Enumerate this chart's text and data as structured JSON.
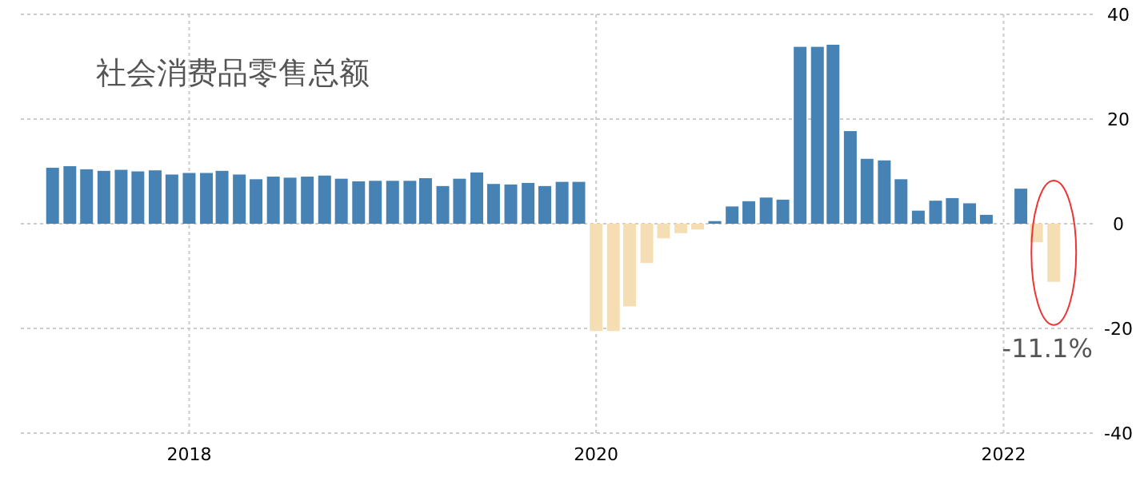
{
  "chart_data": {
    "type": "bar",
    "title": "社会消费品零售总额",
    "x": [
      "2017-05",
      "2017-06",
      "2017-07",
      "2017-08",
      "2017-09",
      "2017-10",
      "2017-11",
      "2017-12",
      "2018-01",
      "2018-02",
      "2018-03",
      "2018-04",
      "2018-05",
      "2018-06",
      "2018-07",
      "2018-08",
      "2018-09",
      "2018-10",
      "2018-11",
      "2018-12",
      "2019-01",
      "2019-02",
      "2019-03",
      "2019-04",
      "2019-05",
      "2019-06",
      "2019-07",
      "2019-08",
      "2019-09",
      "2019-10",
      "2019-11",
      "2019-12",
      "2020-01",
      "2020-02",
      "2020-03",
      "2020-04",
      "2020-05",
      "2020-06",
      "2020-07",
      "2020-08",
      "2020-09",
      "2020-10",
      "2020-11",
      "2020-12",
      "2021-01",
      "2021-02",
      "2021-03",
      "2021-04",
      "2021-05",
      "2021-06",
      "2021-07",
      "2021-08",
      "2021-09",
      "2021-10",
      "2021-11",
      "2021-12",
      "2022-01",
      "2022-02",
      "2022-03",
      "2022-04"
    ],
    "values": [
      10.7,
      11.0,
      10.4,
      10.1,
      10.3,
      10.0,
      10.2,
      9.4,
      9.7,
      9.7,
      10.1,
      9.4,
      8.5,
      9.0,
      8.8,
      9.0,
      9.2,
      8.6,
      8.1,
      8.2,
      8.2,
      8.2,
      8.7,
      7.2,
      8.6,
      9.8,
      7.6,
      7.5,
      7.8,
      7.2,
      8.0,
      8.0,
      -20.5,
      -20.5,
      -15.8,
      -7.5,
      -2.8,
      -1.8,
      -1.1,
      0.5,
      3.3,
      4.3,
      5.0,
      4.6,
      33.8,
      33.8,
      34.2,
      17.7,
      12.4,
      12.1,
      8.5,
      2.5,
      4.4,
      4.9,
      3.9,
      1.7,
      null,
      6.7,
      -3.5,
      -11.1
    ],
    "colors": [
      "#4682b4",
      "#4682b4",
      "#4682b4",
      "#4682b4",
      "#4682b4",
      "#4682b4",
      "#4682b4",
      "#4682b4",
      "#4682b4",
      "#4682b4",
      "#4682b4",
      "#4682b4",
      "#4682b4",
      "#4682b4",
      "#4682b4",
      "#4682b4",
      "#4682b4",
      "#4682b4",
      "#4682b4",
      "#4682b4",
      "#4682b4",
      "#4682b4",
      "#4682b4",
      "#4682b4",
      "#4682b4",
      "#4682b4",
      "#4682b4",
      "#4682b4",
      "#4682b4",
      "#4682b4",
      "#4682b4",
      "#4682b4",
      "#f5deb3",
      "#f5deb3",
      "#f5deb3",
      "#f5deb3",
      "#f5deb3",
      "#f5deb3",
      "#f5deb3",
      "#4682b4",
      "#4682b4",
      "#4682b4",
      "#4682b4",
      "#4682b4",
      "#4682b4",
      "#4682b4",
      "#4682b4",
      "#4682b4",
      "#4682b4",
      "#4682b4",
      "#4682b4",
      "#4682b4",
      "#4682b4",
      "#4682b4",
      "#4682b4",
      "#4682b4",
      null,
      "#4682b4",
      "#f5deb3",
      "#f5deb3"
    ],
    "xlim": [
      "2017-03-05",
      "2022-06-10"
    ],
    "xticks": [
      {
        "value": "2018-01",
        "label": "2018"
      },
      {
        "value": "2020-01",
        "label": "2020"
      },
      {
        "value": "2022-01",
        "label": "2022"
      }
    ],
    "ylim": [
      -40,
      40
    ],
    "yticks": [
      -40,
      -20,
      0,
      20,
      40
    ],
    "grid": true,
    "annotations": [
      {
        "text": "-11.1%",
        "x": "2022-04",
        "y": -11.1
      }
    ]
  }
}
